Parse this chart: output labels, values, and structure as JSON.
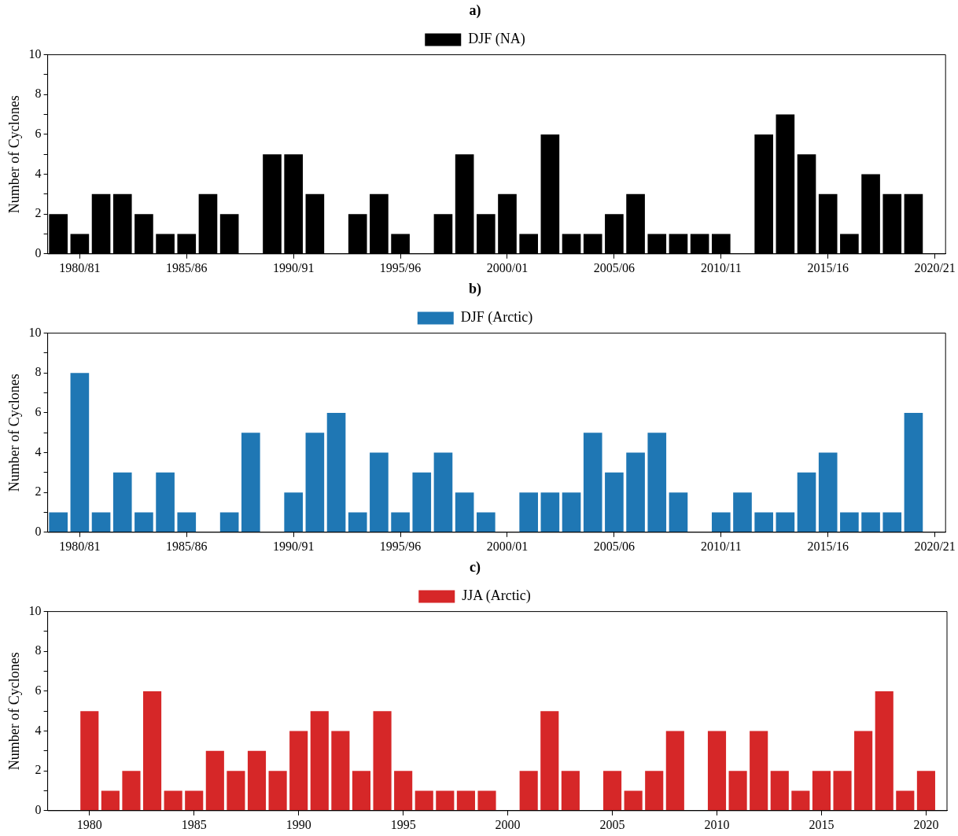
{
  "chart_data": [
    {
      "type": "bar",
      "title": "a)",
      "ylabel": "Number of Cyclones",
      "categories": [
        null,
        "1980/81",
        null,
        null,
        null,
        null,
        "1985/86",
        null,
        null,
        null,
        null,
        "1990/91",
        null,
        null,
        null,
        null,
        "1995/96",
        null,
        null,
        null,
        null,
        "2000/01",
        null,
        null,
        null,
        null,
        "2005/06",
        null,
        null,
        null,
        null,
        "2010/11",
        null,
        null,
        null,
        null,
        "2015/16",
        null,
        null,
        null,
        null,
        "2020/21"
      ],
      "series": [
        {
          "name": "DJF (NA)",
          "color": "#000000",
          "values": [
            2,
            1,
            3,
            3,
            2,
            1,
            1,
            3,
            2,
            0,
            5,
            5,
            3,
            0,
            2,
            3,
            1,
            0,
            2,
            5,
            2,
            3,
            1,
            6,
            1,
            1,
            2,
            3,
            1,
            1,
            1,
            1,
            0,
            6,
            7,
            5,
            3,
            1,
            4,
            3,
            3,
            null
          ]
        }
      ],
      "ylim": [
        0,
        10
      ],
      "yticks": [
        0,
        {
          "value": 1,
          "label": null
        },
        2,
        {
          "value": 3,
          "label": null
        },
        4,
        {
          "value": 5,
          "label": null
        },
        6,
        {
          "value": 7,
          "label": null
        },
        8,
        {
          "value": 9,
          "label": null
        },
        10
      ],
      "grid": false,
      "legend": "top"
    },
    {
      "type": "bar",
      "title": "b)",
      "ylabel": "Number of Cyclones",
      "categories": [
        null,
        "1980/81",
        null,
        null,
        null,
        null,
        "1985/86",
        null,
        null,
        null,
        null,
        "1990/91",
        null,
        null,
        null,
        null,
        "1995/96",
        null,
        null,
        null,
        null,
        "2000/01",
        null,
        null,
        null,
        null,
        "2005/06",
        null,
        null,
        null,
        null,
        "2010/11",
        null,
        null,
        null,
        null,
        "2015/16",
        null,
        null,
        null,
        null,
        "2020/21"
      ],
      "series": [
        {
          "name": "DJF (Arctic)",
          "color": "#1f77b4",
          "values": [
            1,
            8,
            1,
            3,
            1,
            3,
            1,
            0,
            1,
            5,
            0,
            2,
            5,
            6,
            1,
            4,
            1,
            3,
            4,
            2,
            1,
            0,
            2,
            2,
            2,
            5,
            3,
            4,
            5,
            2,
            0,
            1,
            2,
            1,
            1,
            3,
            4,
            1,
            1,
            1,
            6,
            null
          ]
        }
      ],
      "ylim": [
        0,
        10
      ],
      "yticks": [
        0,
        {
          "value": 1,
          "label": null
        },
        2,
        {
          "value": 3,
          "label": null
        },
        4,
        {
          "value": 5,
          "label": null
        },
        6,
        {
          "value": 7,
          "label": null
        },
        8,
        {
          "value": 9,
          "label": null
        },
        10
      ],
      "grid": false,
      "legend": "top"
    },
    {
      "type": "bar",
      "title": "c)",
      "ylabel": "Number of Cyclones",
      "x": [
        1980,
        1981,
        1982,
        1983,
        1984,
        1985,
        1986,
        1987,
        1988,
        1989,
        1990,
        1991,
        1992,
        1993,
        1994,
        1995,
        1996,
        1997,
        1998,
        1999,
        2000,
        2001,
        2002,
        2003,
        2004,
        2005,
        2006,
        2007,
        2008,
        2009,
        2010,
        2011,
        2012,
        2013,
        2014,
        2015,
        2016,
        2017,
        2018,
        2019,
        2020
      ],
      "series": [
        {
          "name": "JJA (Arctic)",
          "color": "#d62728",
          "values": [
            5,
            1,
            2,
            6,
            1,
            1,
            3,
            2,
            3,
            2,
            4,
            5,
            4,
            2,
            5,
            2,
            1,
            1,
            1,
            1,
            0,
            2,
            5,
            2,
            0,
            2,
            1,
            2,
            4,
            0,
            4,
            2,
            4,
            2,
            1,
            2,
            2,
            4,
            6,
            1,
            2
          ]
        }
      ],
      "xlim": [
        1978,
        2021
      ],
      "xticks": [
        1980,
        1985,
        1990,
        1995,
        2000,
        2005,
        2010,
        2015,
        2020
      ],
      "ylim": [
        0,
        10
      ],
      "yticks": [
        0,
        {
          "value": 1,
          "label": null
        },
        2,
        {
          "value": 3,
          "label": null
        },
        4,
        {
          "value": 5,
          "label": null
        },
        6,
        {
          "value": 7,
          "label": null
        },
        8,
        {
          "value": 9,
          "label": null
        },
        10
      ],
      "grid": false,
      "legend": "top"
    }
  ]
}
